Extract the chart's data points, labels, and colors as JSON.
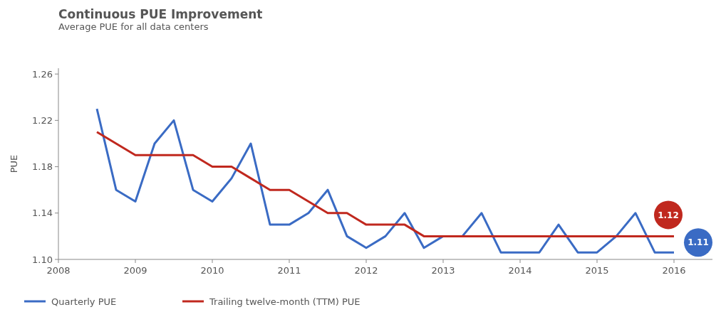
{
  "chart_data": {
    "type": "line",
    "title": "Continuous PUE Improvement",
    "subtitle": "Average PUE for all data centers",
    "ylabel": "PUE",
    "x": [
      2008.5,
      2008.75,
      2009,
      2009.25,
      2009.5,
      2009.75,
      2010,
      2010.25,
      2010.5,
      2010.75,
      2011,
      2011.25,
      2011.5,
      2011.75,
      2012,
      2012.25,
      2012.5,
      2012.75,
      2013,
      2013.25,
      2013.5,
      2013.75,
      2014,
      2014.25,
      2014.5,
      2014.75,
      2015,
      2015.25,
      2015.5,
      2015.75,
      2016
    ],
    "series": [
      {
        "name": "Quarterly PUE",
        "color": "#3a6bc4",
        "values": [
          1.23,
          1.16,
          1.15,
          1.2,
          1.22,
          1.16,
          1.15,
          1.17,
          1.2,
          1.13,
          1.13,
          1.14,
          1.16,
          1.12,
          1.11,
          1.12,
          1.14,
          1.11,
          1.12,
          1.12,
          1.14,
          1.106,
          1.106,
          1.106,
          1.13,
          1.106,
          1.106,
          1.12,
          1.14,
          1.106,
          1.106
        ]
      },
      {
        "name": "Trailing twelve-month (TTM) PUE",
        "color": "#c0281e",
        "values": [
          1.21,
          1.2,
          1.19,
          1.19,
          1.19,
          1.19,
          1.18,
          1.18,
          1.17,
          1.16,
          1.16,
          1.15,
          1.14,
          1.14,
          1.13,
          1.13,
          1.13,
          1.12,
          1.12,
          1.12,
          1.12,
          1.12,
          1.12,
          1.12,
          1.12,
          1.12,
          1.12,
          1.12,
          1.12,
          1.12,
          1.12
        ]
      }
    ],
    "xlim": [
      2008,
      2016.5
    ],
    "xticks": [
      2008,
      2009,
      2010,
      2011,
      2012,
      2013,
      2014,
      2015,
      2016
    ],
    "ylim": [
      1.1,
      1.265
    ],
    "yticks": [
      {
        "value": 1.1,
        "label": "1.10"
      },
      1.14,
      1.18,
      1.22,
      1.26
    ],
    "annotations": [
      {
        "text": "1.11",
        "x": 2016,
        "y": 1.106
      },
      {
        "text": "1.12",
        "x": 2016,
        "y": 1.12
      }
    ],
    "legend": "bottom left",
    "grid": false,
    "marker": "none",
    "line_style": "solid"
  }
}
